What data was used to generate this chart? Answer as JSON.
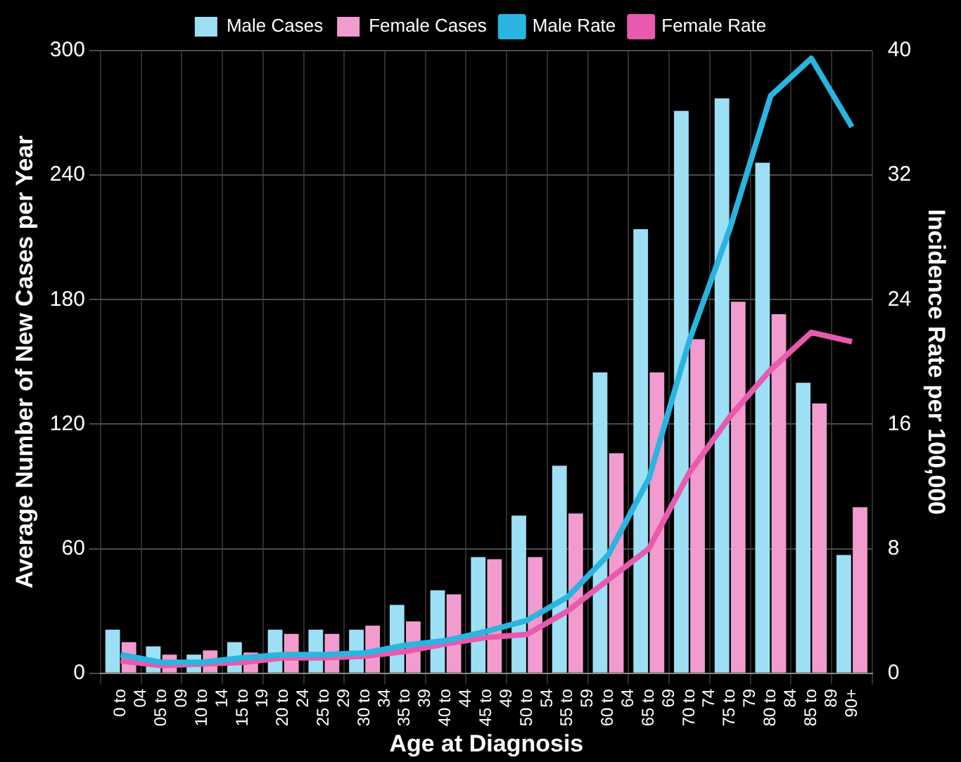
{
  "chart_data": {
    "type": "bar",
    "xlabel": "Age at Diagnosis",
    "ylabel": "Average Number of New Cases per Year",
    "y2label": "Incidence Rate per 100,000",
    "categories": [
      "0 to 04",
      "05 to 09",
      "10 to 14",
      "15 to 19",
      "20 to 24",
      "25 to 29",
      "30 to 34",
      "35 to 39",
      "40 to 44",
      "45 to 49",
      "50 to 54",
      "55 to 59",
      "60 to 64",
      "65 to 69",
      "70 to 74",
      "75 to 79",
      "80 to 84",
      "85 to 89",
      "90+"
    ],
    "series": [
      {
        "name": "Male Cases",
        "color": "#9de0f5",
        "values": [
          21,
          13,
          9,
          15,
          21,
          21,
          21,
          33,
          40,
          56,
          76,
          100,
          145,
          214,
          271,
          277,
          246,
          140,
          57
        ]
      },
      {
        "name": "Female Cases",
        "color": "#f29bce",
        "values": [
          15,
          9,
          11,
          10,
          19,
          19,
          23,
          25,
          38,
          55,
          56,
          77,
          106,
          145,
          161,
          179,
          173,
          130,
          80
        ]
      },
      {
        "name": "Male Rate",
        "type": "line",
        "axis": "y2",
        "color": "#29b5e0",
        "values": [
          1.2,
          0.7,
          0.7,
          1.0,
          1.2,
          1.2,
          1.3,
          1.8,
          2.1,
          2.7,
          3.4,
          4.9,
          7.6,
          12.5,
          21.4,
          28.6,
          37.1,
          39.5,
          35.1
        ]
      },
      {
        "name": "Female Rate",
        "type": "line",
        "axis": "y2",
        "color": "#e85aad",
        "values": [
          0.8,
          0.5,
          0.6,
          0.7,
          1.0,
          1.0,
          1.1,
          1.4,
          1.9,
          2.3,
          2.5,
          4.0,
          6.0,
          8.0,
          12.9,
          16.5,
          19.5,
          21.9,
          21.3
        ]
      }
    ],
    "ylim": [
      0,
      300
    ],
    "yticks": [
      0,
      60,
      120,
      180,
      240,
      300
    ],
    "y2lim": [
      0,
      40
    ],
    "y2ticks": [
      0,
      8,
      16,
      24,
      32,
      40
    ],
    "grid": true,
    "legend": "top",
    "marker": "none",
    "line_style": "solid"
  }
}
